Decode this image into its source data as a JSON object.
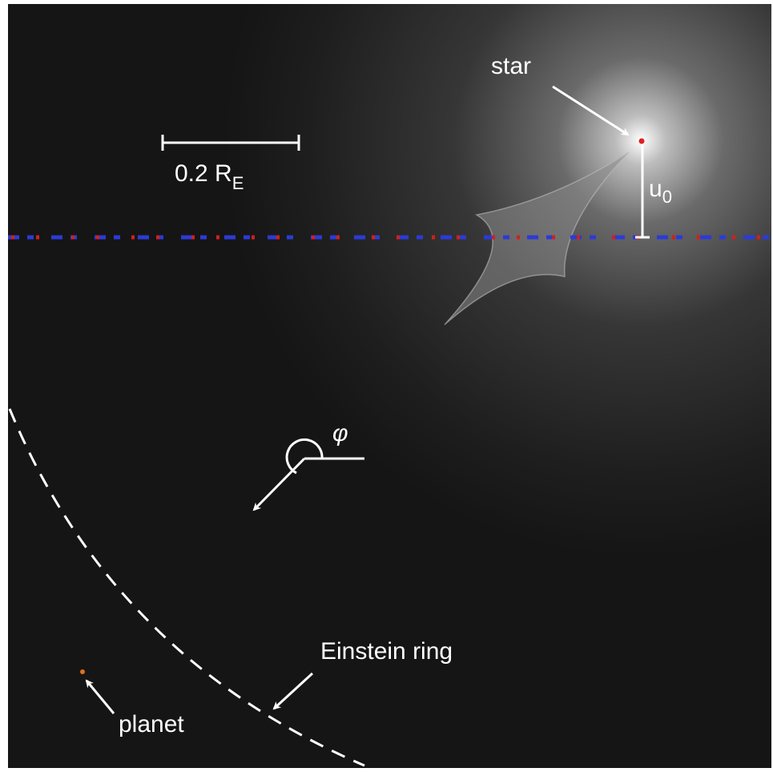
{
  "labels": {
    "star": "star",
    "scale": "0.2 R",
    "scale_sub": "E",
    "u": "u",
    "u_sub": "0",
    "phi": "φ",
    "ring": "Einstein ring",
    "planet": "planet"
  }
}
